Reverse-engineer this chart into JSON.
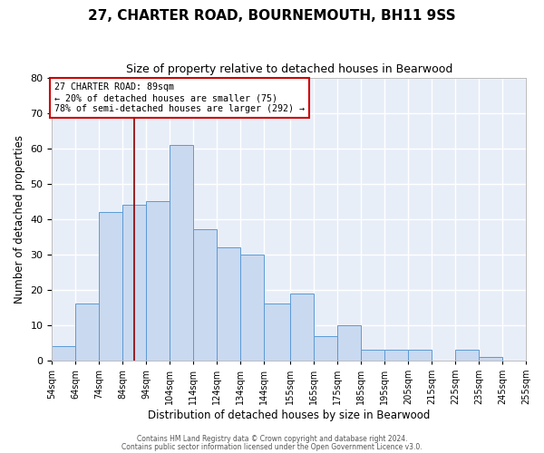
{
  "title": "27, CHARTER ROAD, BOURNEMOUTH, BH11 9SS",
  "subtitle": "Size of property relative to detached houses in Bearwood",
  "xlabel": "Distribution of detached houses by size in Bearwood",
  "ylabel": "Number of detached properties",
  "bin_edges": [
    54,
    64,
    74,
    84,
    94,
    104,
    114,
    124,
    134,
    144,
    155,
    165,
    175,
    185,
    195,
    205,
    215,
    225,
    235,
    245,
    255
  ],
  "counts": [
    4,
    16,
    42,
    44,
    45,
    61,
    37,
    32,
    30,
    16,
    19,
    7,
    10,
    3,
    3,
    3,
    0,
    3,
    1,
    0
  ],
  "bar_facecolor": "#c9d9f0",
  "bar_edgecolor": "#5b9bd5",
  "background_color": "#e8eef8",
  "grid_color": "#ffffff",
  "property_line_x": 89,
  "property_line_color": "#8b0000",
  "annotation_title": "27 CHARTER ROAD: 89sqm",
  "annotation_line1": "← 20% of detached houses are smaller (75)",
  "annotation_line2": "78% of semi-detached houses are larger (292) →",
  "annotation_box_edgecolor": "#cc0000",
  "ylim": [
    0,
    80
  ],
  "yticks": [
    0,
    10,
    20,
    30,
    40,
    50,
    60,
    70,
    80
  ],
  "footer1": "Contains HM Land Registry data © Crown copyright and database right 2024.",
  "footer2": "Contains public sector information licensed under the Open Government Licence v3.0."
}
